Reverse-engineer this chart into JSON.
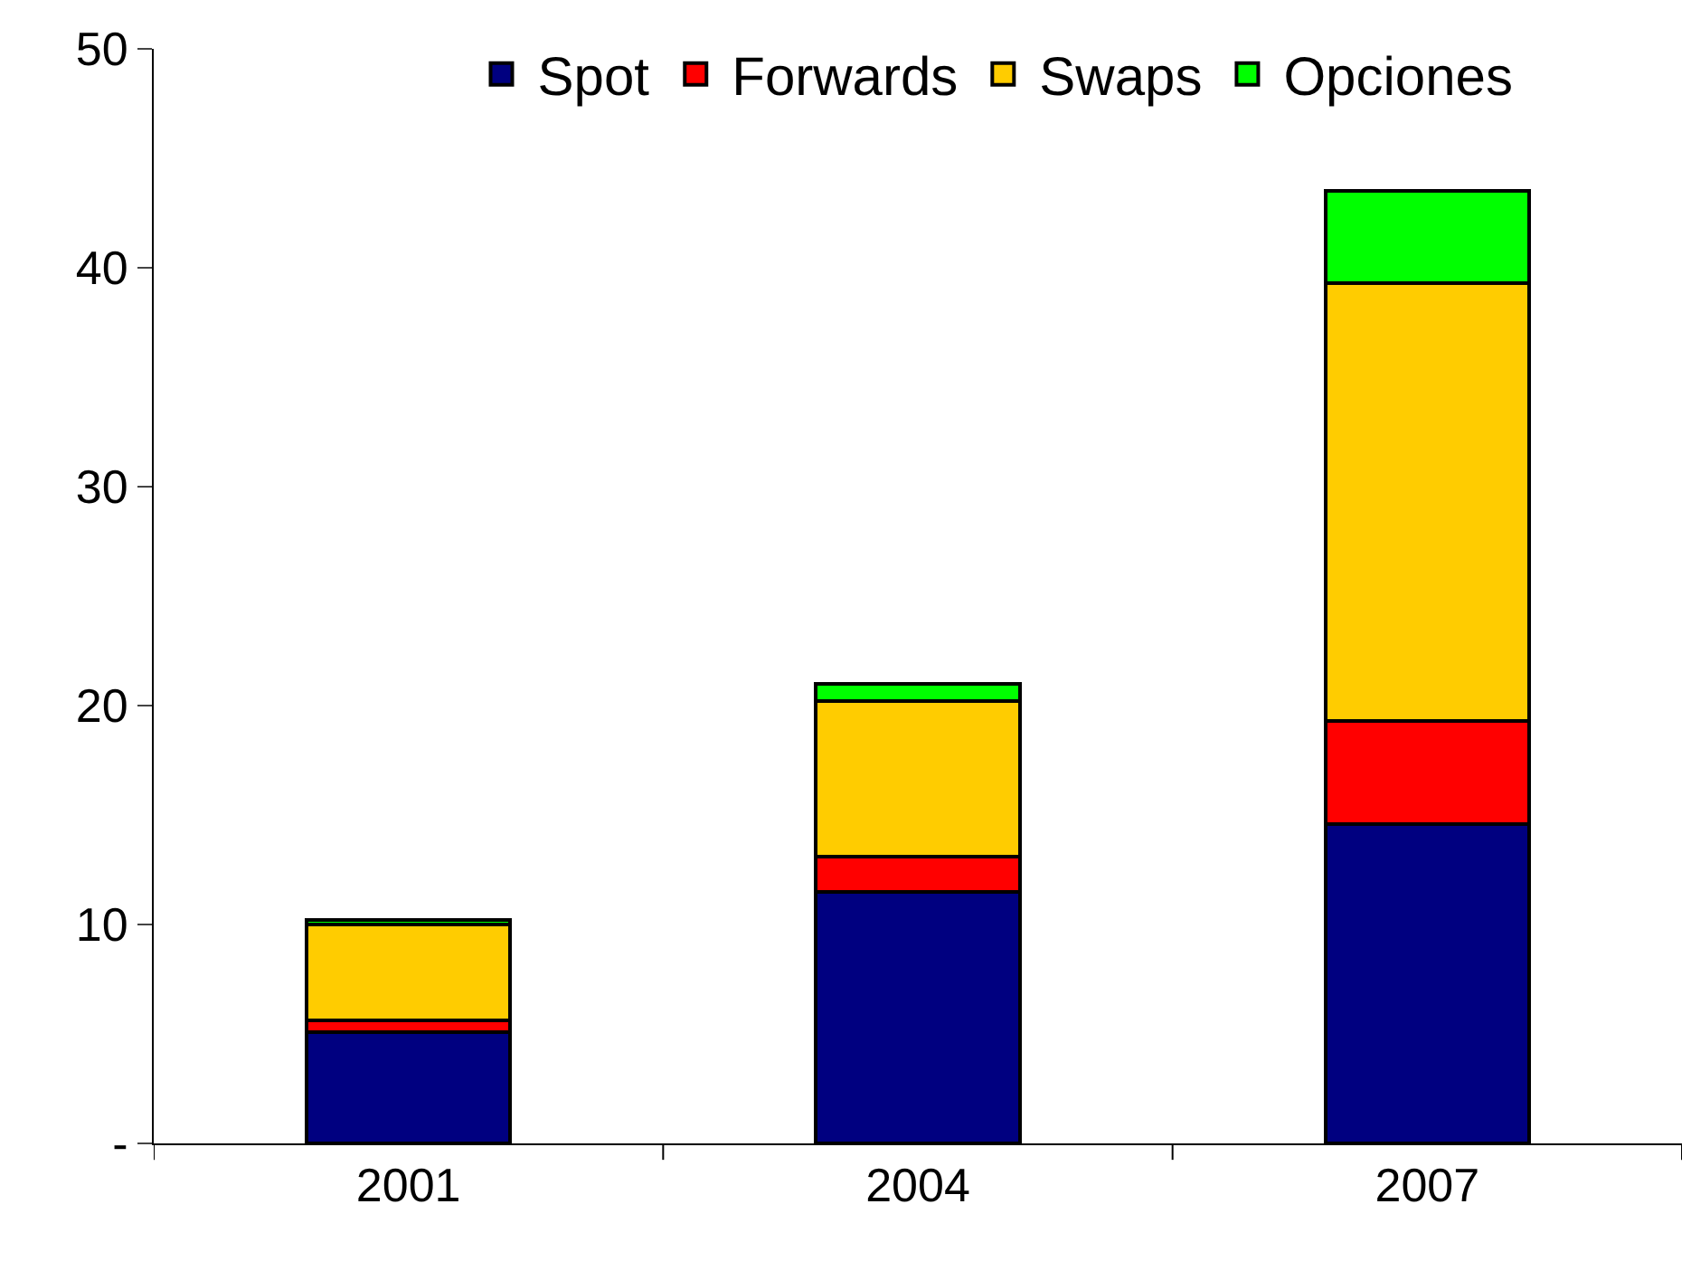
{
  "chart_data": {
    "type": "bar",
    "stacked": true,
    "categories": [
      "2001",
      "2004",
      "2007"
    ],
    "series": [
      {
        "name": "Spot",
        "color": "#000080",
        "values": [
          5.1,
          11.5,
          14.6
        ]
      },
      {
        "name": "Forwards",
        "color": "#ff0000",
        "values": [
          0.5,
          1.6,
          4.7
        ]
      },
      {
        "name": "Swaps",
        "color": "#ffcc00",
        "values": [
          4.4,
          7.1,
          20.0
        ]
      },
      {
        "name": "Opciones",
        "color": "#00ff00",
        "values": [
          0.2,
          0.8,
          4.2
        ]
      }
    ],
    "ylim": [
      0,
      50
    ],
    "yticks": [
      {
        "value": 0,
        "label": "-"
      },
      10,
      20,
      30,
      40,
      50
    ],
    "legend": "top"
  }
}
